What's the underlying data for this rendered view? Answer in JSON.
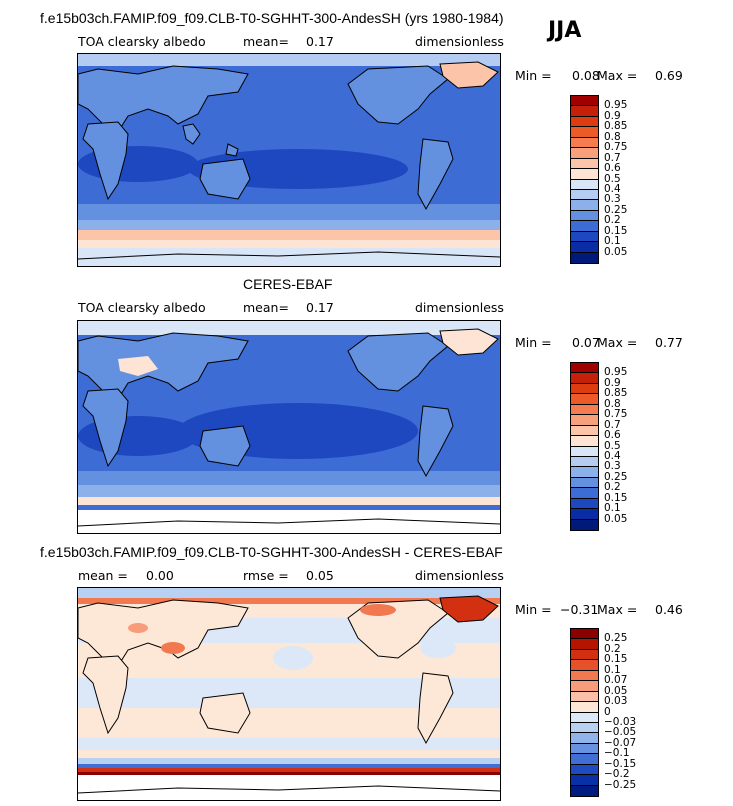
{
  "season": "JJA",
  "panels": [
    {
      "title": "f.e15b03ch.FAMIP.f09_f09.CLB-T0-SGHHT-300-AndesSH (yrs 1980-1984)",
      "left_label": "TOA clearsky albedo",
      "mean_label": "mean=",
      "mean_value": "0.17",
      "units": "dimensionless",
      "min_label": "Min =",
      "min_value": "0.08",
      "max_label": "Max =",
      "max_value": "0.69",
      "colorbar_labels": [
        "0.95",
        "0.9",
        "0.85",
        "0.8",
        "0.75",
        "0.7",
        "0.6",
        "0.5",
        "0.4",
        "0.3",
        "0.25",
        "0.2",
        "0.15",
        "0.1",
        "0.05"
      ]
    },
    {
      "title": "CERES-EBAF",
      "left_label": "TOA clearsky albedo",
      "mean_label": "mean=",
      "mean_value": "0.17",
      "units": "dimensionless",
      "min_label": "Min =",
      "min_value": "0.07",
      "max_label": "Max =",
      "max_value": "0.77",
      "colorbar_labels": [
        "0.95",
        "0.9",
        "0.85",
        "0.8",
        "0.75",
        "0.7",
        "0.6",
        "0.5",
        "0.4",
        "0.3",
        "0.25",
        "0.2",
        "0.15",
        "0.1",
        "0.05"
      ]
    },
    {
      "title": "f.e15b03ch.FAMIP.f09_f09.CLB-T0-SGHHT-300-AndesSH - CERES-EBAF",
      "left_label": "mean =",
      "mean_value": "0.00",
      "rmse_label": "rmse =",
      "rmse_value": "0.05",
      "units": "dimensionless",
      "min_label": "Min =",
      "min_value": "−0.31",
      "max_label": "Max =",
      "max_value": "0.46",
      "colorbar_labels": [
        "0.25",
        "0.2",
        "0.15",
        "0.1",
        "0.07",
        "0.05",
        "0.03",
        "0",
        "−0.03",
        "−0.05",
        "−0.07",
        "−0.1",
        "−0.15",
        "−0.2",
        "−0.25"
      ]
    }
  ],
  "colors": {
    "albedo_scale": [
      "#a00000",
      "#c4200a",
      "#dc3c10",
      "#ec5a28",
      "#f47c50",
      "#f8a07c",
      "#fcc4a8",
      "#fde4d4",
      "#d8e6f8",
      "#b4ccf2",
      "#8cb0ea",
      "#6490e0",
      "#3c6cd4",
      "#1e48c0",
      "#0a2ca4",
      "#001a7a"
    ],
    "diff_scale": [
      "#8c0000",
      "#b41400",
      "#d23010",
      "#e6502a",
      "#f27850",
      "#f89c7c",
      "#fcc0a8",
      "#fde8d8",
      "#dce8f8",
      "#b8d0f2",
      "#90b4ea",
      "#6892e0",
      "#406ed4",
      "#1e4cc0",
      "#0a30a8",
      "#001c80"
    ]
  }
}
